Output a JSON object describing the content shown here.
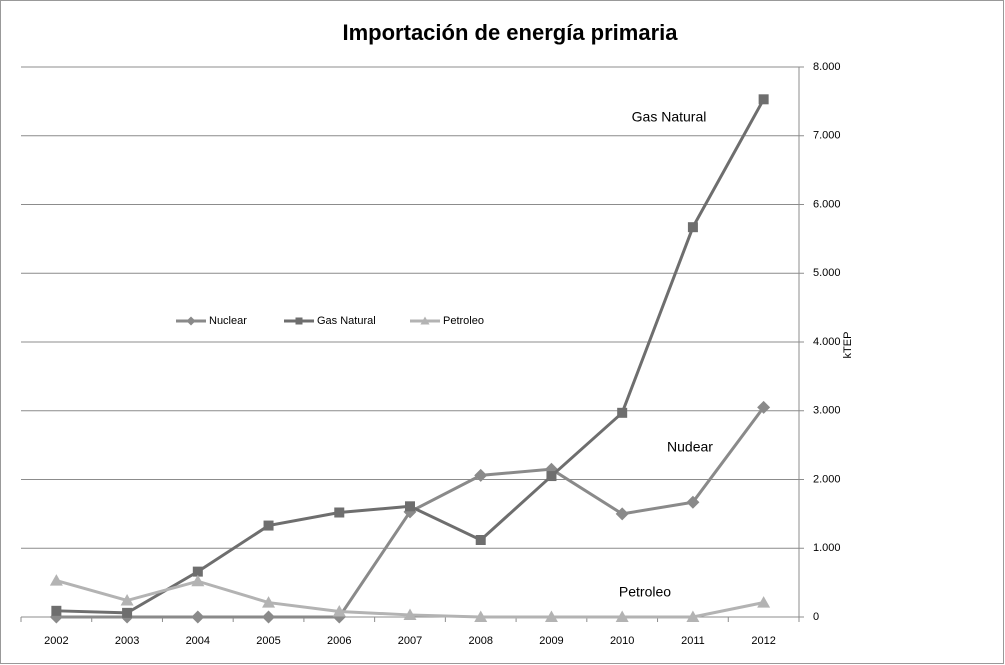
{
  "chart_data": {
    "type": "line",
    "title": "Importación de energía primaria",
    "y_axis_label": "kTEP",
    "categories": [
      "2002",
      "2003",
      "2004",
      "2005",
      "2006",
      "2007",
      "2008",
      "2009",
      "2010",
      "2011",
      "2012"
    ],
    "series": [
      {
        "name": "Nuclear",
        "color": "#8a8a8a",
        "marker": "diamond",
        "values": [
          0,
          0,
          0,
          0,
          0,
          1530,
          2060,
          2150,
          1500,
          1670,
          3050
        ]
      },
      {
        "name": "Gas Natural",
        "color": "#6e6e6e",
        "marker": "square",
        "values": [
          90,
          60,
          660,
          1330,
          1520,
          1610,
          1120,
          2050,
          2970,
          5670,
          7530
        ]
      },
      {
        "name": "Petroleo",
        "color": "#b3b3b3",
        "marker": "triangle",
        "values": [
          530,
          240,
          520,
          210,
          80,
          30,
          0,
          0,
          0,
          0,
          210
        ]
      }
    ],
    "ylim": [
      0,
      8000
    ],
    "yticks": [
      0,
      {
        "value": 1000,
        "label": "1.000"
      },
      {
        "value": 2000,
        "label": "2.000"
      },
      {
        "value": 3000,
        "label": "3.000"
      },
      {
        "value": 4000,
        "label": "4.000"
      },
      {
        "value": 5000,
        "label": "5.000"
      },
      {
        "value": 6000,
        "label": "6.000"
      },
      {
        "value": 7000,
        "label": "7.000"
      },
      {
        "value": 8000,
        "label": "8.000"
      }
    ],
    "grid": true,
    "y_axis_side": "right",
    "legend": "left",
    "annotations": [
      "Gas Natural",
      "Nudear",
      "Petroleo"
    ]
  }
}
